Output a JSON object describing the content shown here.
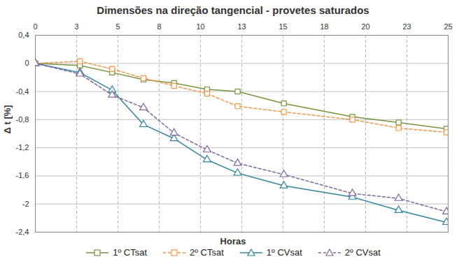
{
  "chart_data": {
    "type": "line",
    "title": "Dimensões na direção tangencial - provetes saturados",
    "x_label": "Horas",
    "y_label": "Δ t [%]",
    "x": [
      0,
      2.7,
      4.65,
      6.55,
      8.4,
      10.4,
      12.25,
      15.05,
      19.2,
      22.0,
      24.9
    ],
    "series": [
      {
        "name": "1º CTsat",
        "color": "#77933c",
        "marker": "square",
        "line_style": "solid",
        "values": [
          0,
          -0.03,
          -0.13,
          -0.23,
          -0.28,
          -0.37,
          -0.4,
          -0.57,
          -0.76,
          -0.84,
          -0.93
        ]
      },
      {
        "name": "2º CTsat",
        "color": "#f79646",
        "marker": "square",
        "line_style": "dashed",
        "values": [
          0,
          0.03,
          -0.08,
          -0.21,
          -0.32,
          -0.43,
          -0.61,
          -0.69,
          -0.8,
          -0.92,
          -0.98
        ]
      },
      {
        "name": "1º CVsat",
        "color": "#31859c",
        "marker": "triangle",
        "line_style": "solid",
        "values": [
          0,
          -0.13,
          -0.38,
          -0.87,
          -1.07,
          -1.37,
          -1.56,
          -1.74,
          -1.9,
          -2.09,
          -2.26
        ]
      },
      {
        "name": "2º CVsat",
        "color": "#8064a2",
        "marker": "triangle",
        "line_style": "dashed",
        "values": [
          0,
          -0.15,
          -0.45,
          -0.63,
          -0.99,
          -1.23,
          -1.42,
          -1.58,
          -1.85,
          -1.92,
          -2.11
        ]
      }
    ],
    "xlim": [
      0,
      25
    ],
    "xticks": [
      0,
      {
        "value": 2.5,
        "label": "3"
      },
      5,
      {
        "value": 7.5,
        "label": "8"
      },
      10,
      {
        "value": 12.5,
        "label": "13"
      },
      15,
      {
        "value": 17.5,
        "label": "18"
      },
      20,
      {
        "value": 22.5,
        "label": "23"
      },
      25
    ],
    "ylim": [
      -2.4,
      0.4
    ],
    "yticks": [
      {
        "value": -2.4,
        "label": "-2,4"
      },
      {
        "value": -2,
        "label": "-2"
      },
      {
        "value": -1.6,
        "label": "-1,6"
      },
      {
        "value": -1.2,
        "label": "-1,2"
      },
      {
        "value": -0.8,
        "label": "-0,8"
      },
      {
        "value": -0.4,
        "label": "-0,4"
      },
      0,
      {
        "value": 0.4,
        "label": "0,4"
      }
    ],
    "grid": true,
    "legend": "bottom"
  }
}
